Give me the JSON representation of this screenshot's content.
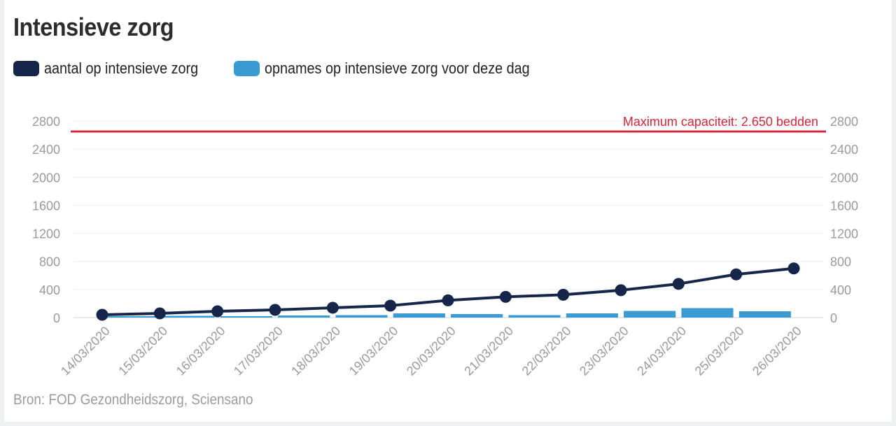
{
  "title": "Intensieve zorg",
  "source": "Bron: FOD Gezondheidszorg, Sciensano",
  "legend": [
    {
      "label": "aantal op intensieve zorg",
      "color": "#16264a"
    },
    {
      "label": "opnames op intensieve zorg voor deze dag",
      "color": "#3a9bd2"
    }
  ],
  "chart_data": {
    "type": "bar+line",
    "categories": [
      "14/03/2020",
      "15/03/2020",
      "16/03/2020",
      "17/03/2020",
      "18/03/2020",
      "19/03/2020",
      "20/03/2020",
      "21/03/2020",
      "22/03/2020",
      "23/03/2020",
      "24/03/2020",
      "25/03/2020",
      "26/03/2020"
    ],
    "series": [
      {
        "name": "aantal op intensieve zorg",
        "type": "line",
        "color": "#16264a",
        "values": [
          40,
          60,
          90,
          110,
          140,
          170,
          245,
          295,
          325,
          390,
          480,
          615,
          700
        ]
      },
      {
        "name": "opnames op intensieve zorg voor deze dag",
        "type": "bar",
        "color": "#3a9bd2",
        "values": [
          null,
          15,
          25,
          20,
          30,
          35,
          60,
          50,
          35,
          60,
          95,
          135,
          90
        ]
      }
    ],
    "ylim": [
      0,
      2800
    ],
    "yticks": [
      0,
      400,
      800,
      1200,
      1600,
      2000,
      2400,
      2800
    ],
    "ylabel": "",
    "xlabel": "",
    "grid": true,
    "legend_position": "top-left",
    "reference_line": {
      "value": 2650,
      "label": "Maximum capaciteit: 2.650 bedden",
      "color": "#d2283c"
    }
  }
}
